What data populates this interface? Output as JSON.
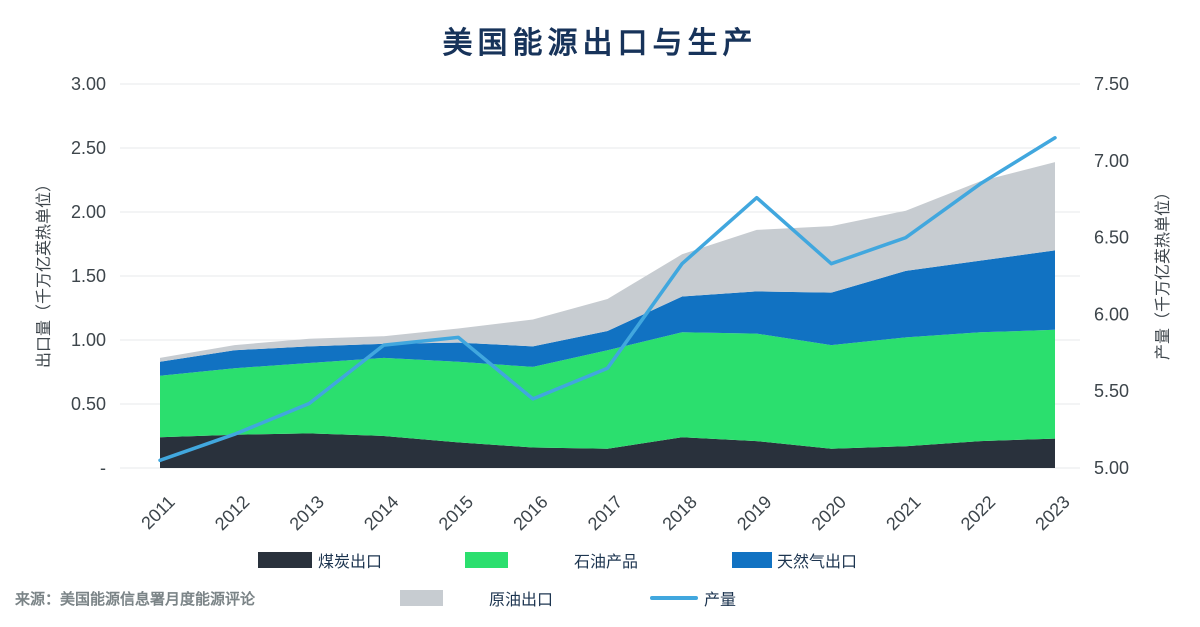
{
  "title": "美国能源出口与生产",
  "source": "来源：美国能源信息署月度能源评论",
  "colors": {
    "background": "#ffffff",
    "title_text": "#17335a",
    "legend_text": "#1d3550",
    "axis_text": "#3d454b",
    "tick_text": "#3d454b",
    "source_text": "#7b8487",
    "gridline": "#e7e9eb"
  },
  "left_axis": {
    "title": "出口量（千万亿英热单位）",
    "min": 0,
    "max": 3,
    "ticks": [
      {
        "label": "3.00",
        "value": 3.0
      },
      {
        "label": "2.50",
        "value": 2.5
      },
      {
        "label": "2.00",
        "value": 2.0
      },
      {
        "label": "1.50",
        "value": 1.5
      },
      {
        "label": "1.00",
        "value": 1.0
      },
      {
        "label": "0.50",
        "value": 0.5
      },
      {
        "label": "-",
        "value": 0.0
      }
    ]
  },
  "right_axis": {
    "title": "产量（千万亿英热单位）",
    "min": 5.0,
    "max": 7.5,
    "ticks": [
      {
        "label": "7.50",
        "value": 7.5
      },
      {
        "label": "7.00",
        "value": 7.0
      },
      {
        "label": "6.50",
        "value": 6.5
      },
      {
        "label": "6.00",
        "value": 6.0
      },
      {
        "label": "5.50",
        "value": 5.5
      },
      {
        "label": "5.00",
        "value": 5.0
      }
    ]
  },
  "chart_data": {
    "type": "area",
    "subtype": "stacked-area-with-line",
    "stacked": true,
    "grid": true,
    "legend_position": "bottom",
    "x": [
      2011,
      2012,
      2013,
      2014,
      2015,
      2016,
      2017,
      2018,
      2019,
      2020,
      2021,
      2022,
      2023
    ],
    "series": [
      {
        "name": "煤炭出口",
        "type": "area",
        "axis": "left",
        "color": "#29313c",
        "values": [
          0.24,
          0.26,
          0.27,
          0.25,
          0.2,
          0.16,
          0.15,
          0.24,
          0.21,
          0.15,
          0.17,
          0.21,
          0.23
        ]
      },
      {
        "name": "石油产品",
        "type": "area",
        "axis": "left",
        "color": "#2bdf6e",
        "values": [
          0.48,
          0.52,
          0.55,
          0.61,
          0.63,
          0.63,
          0.77,
          0.82,
          0.84,
          0.81,
          0.85,
          0.85,
          0.85
        ]
      },
      {
        "name": "天然气出口",
        "type": "area",
        "axis": "left",
        "color": "#1172c2",
        "values": [
          0.11,
          0.14,
          0.13,
          0.11,
          0.15,
          0.16,
          0.15,
          0.28,
          0.33,
          0.41,
          0.52,
          0.56,
          0.62
        ]
      },
      {
        "name": "原油出口",
        "type": "area",
        "axis": "left",
        "color": "#c7ccd1",
        "values": [
          0.03,
          0.04,
          0.06,
          0.06,
          0.11,
          0.21,
          0.25,
          0.33,
          0.48,
          0.52,
          0.47,
          0.62,
          0.69
        ]
      },
      {
        "name": "产量",
        "type": "line",
        "axis": "right",
        "color": "#41a7de",
        "values": [
          5.05,
          5.22,
          5.42,
          5.8,
          5.85,
          5.45,
          5.65,
          6.33,
          6.76,
          6.33,
          6.5,
          6.85,
          7.15
        ]
      }
    ]
  }
}
